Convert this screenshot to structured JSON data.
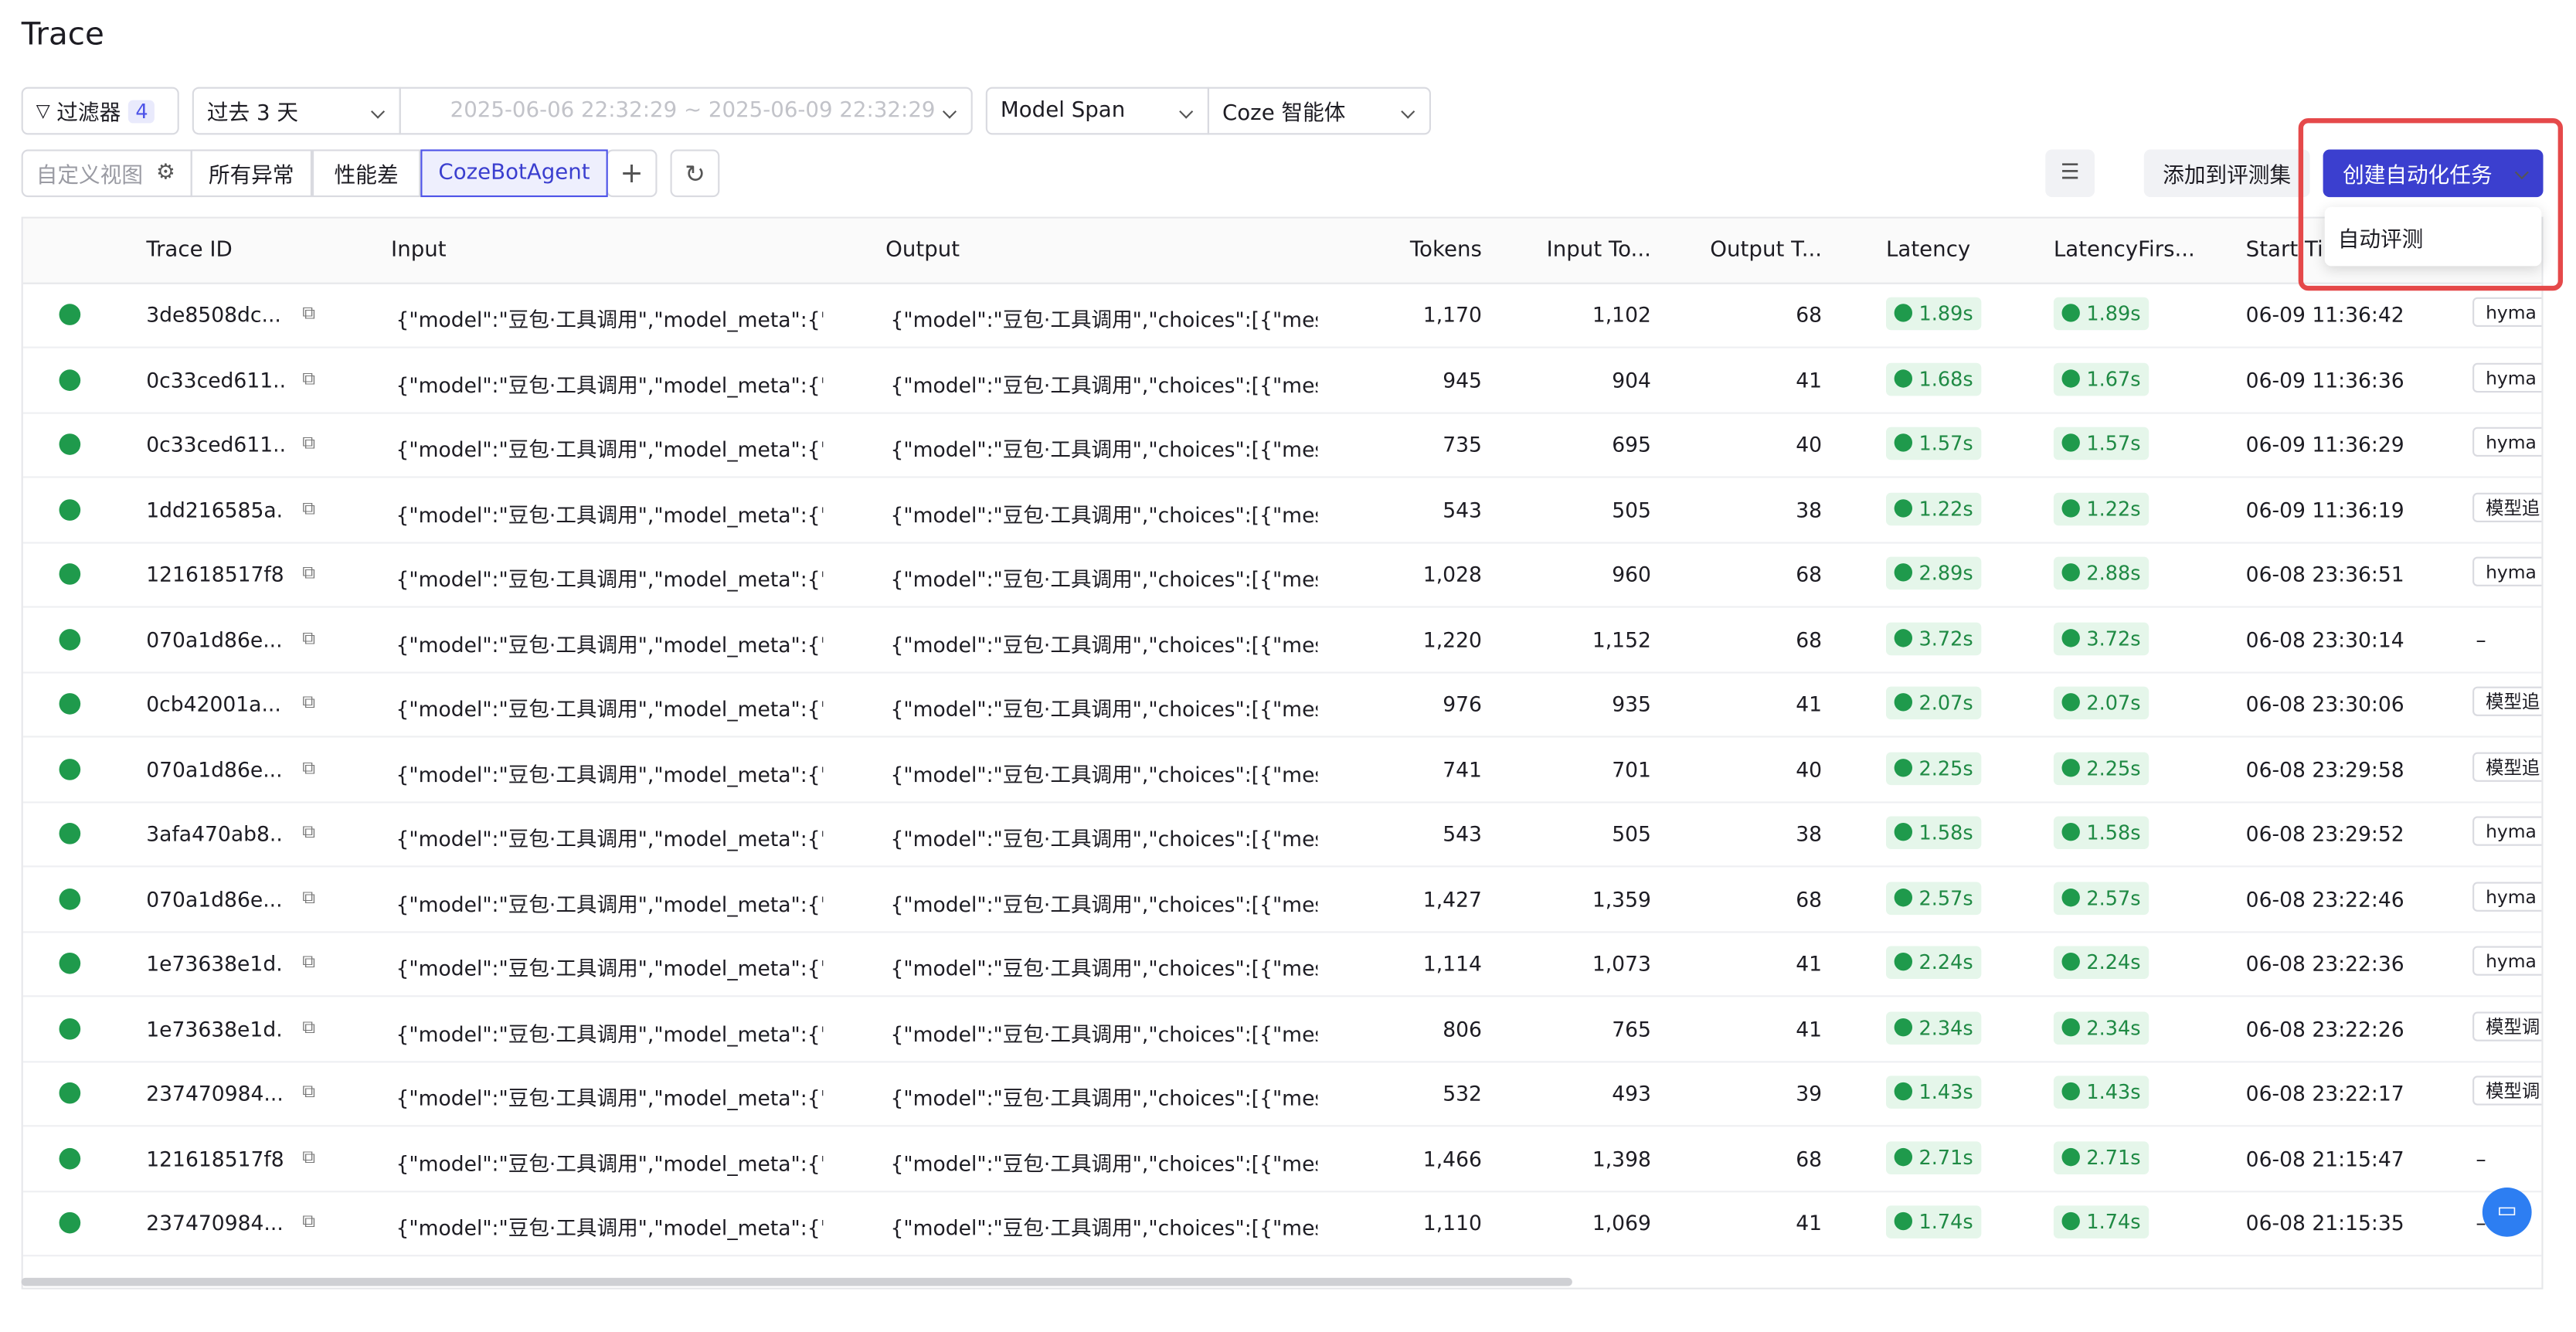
{
  "header": {
    "title": "Trace"
  },
  "toolbar": {
    "filter": "过滤器",
    "filter_count": "4",
    "time_range": "过去 3 天",
    "date_range": "2025-06-06 22:32:29 ~ 2025-06-09 22:32:29",
    "span_type": "Model Span",
    "platform": "Coze 智能体"
  },
  "views": {
    "custom": "自定义视图",
    "tabs": [
      "所有异常",
      "性能差",
      "CozeBotAgent"
    ],
    "add_to_eval": "添加到评测集",
    "create_task": "创建自动化任务",
    "dropdown": [
      "自动评测"
    ]
  },
  "table": {
    "columns": [
      "Trace ID",
      "Input",
      "Output",
      "Tokens",
      "Input To...",
      "Output T...",
      "Latency",
      "LatencyFirs...",
      "Start Tim"
    ],
    "rows": [
      [
        "3de8508dc...",
        "{\"model\":\"豆包·工具调用\",\"model_meta\":{\"t...",
        "{\"model\":\"豆包·工具调用\",\"choices\":[{\"mes...",
        "1,170",
        "1,102",
        "68",
        "1.89s",
        "1.89s",
        "06-09 11:36:42",
        "hyma"
      ],
      [
        "0c33ced611...",
        "{\"model\":\"豆包·工具调用\",\"model_meta\":{\"t...",
        "{\"model\":\"豆包·工具调用\",\"choices\":[{\"mes...",
        "945",
        "904",
        "41",
        "1.68s",
        "1.67s",
        "06-09 11:36:36",
        "hyma"
      ],
      [
        "0c33ced611...",
        "{\"model\":\"豆包·工具调用\",\"model_meta\":{\"t...",
        "{\"model\":\"豆包·工具调用\",\"choices\":[{\"mes...",
        "735",
        "695",
        "40",
        "1.57s",
        "1.57s",
        "06-09 11:36:29",
        "hyma"
      ],
      [
        "1dd216585a...",
        "{\"model\":\"豆包·工具调用\",\"model_meta\":{\"t...",
        "{\"model\":\"豆包·工具调用\",\"choices\":[{\"mes...",
        "543",
        "505",
        "38",
        "1.22s",
        "1.22s",
        "06-09 11:36:19",
        "模型追"
      ],
      [
        "121618517f8...",
        "{\"model\":\"豆包·工具调用\",\"model_meta\":{\"t...",
        "{\"model\":\"豆包·工具调用\",\"choices\":[{\"mes...",
        "1,028",
        "960",
        "68",
        "2.89s",
        "2.88s",
        "06-08 23:36:51",
        "hyma"
      ],
      [
        "070a1d86e...",
        "{\"model\":\"豆包·工具调用\",\"model_meta\":{\"t...",
        "{\"model\":\"豆包·工具调用\",\"choices\":[{\"mes...",
        "1,220",
        "1,152",
        "68",
        "3.72s",
        "3.72s",
        "06-08 23:30:14",
        "–"
      ],
      [
        "0cb42001a...",
        "{\"model\":\"豆包·工具调用\",\"model_meta\":{\"t...",
        "{\"model\":\"豆包·工具调用\",\"choices\":[{\"mes...",
        "976",
        "935",
        "41",
        "2.07s",
        "2.07s",
        "06-08 23:30:06",
        "模型追"
      ],
      [
        "070a1d86e...",
        "{\"model\":\"豆包·工具调用\",\"model_meta\":{\"t...",
        "{\"model\":\"豆包·工具调用\",\"choices\":[{\"mes...",
        "741",
        "701",
        "40",
        "2.25s",
        "2.25s",
        "06-08 23:29:58",
        "模型追"
      ],
      [
        "3afa470ab8...",
        "{\"model\":\"豆包·工具调用\",\"model_meta\":{\"t...",
        "{\"model\":\"豆包·工具调用\",\"choices\":[{\"mes...",
        "543",
        "505",
        "38",
        "1.58s",
        "1.58s",
        "06-08 23:29:52",
        "hyma"
      ],
      [
        "070a1d86e...",
        "{\"model\":\"豆包·工具调用\",\"model_meta\":{\"t...",
        "{\"model\":\"豆包·工具调用\",\"choices\":[{\"mes...",
        "1,427",
        "1,359",
        "68",
        "2.57s",
        "2.57s",
        "06-08 23:22:46",
        "hyma"
      ],
      [
        "1e73638e1d...",
        "{\"model\":\"豆包·工具调用\",\"model_meta\":{\"t...",
        "{\"model\":\"豆包·工具调用\",\"choices\":[{\"mes...",
        "1,114",
        "1,073",
        "41",
        "2.24s",
        "2.24s",
        "06-08 23:22:36",
        "hyma"
      ],
      [
        "1e73638e1d...",
        "{\"model\":\"豆包·工具调用\",\"model_meta\":{\"t...",
        "{\"model\":\"豆包·工具调用\",\"choices\":[{\"mes...",
        "806",
        "765",
        "41",
        "2.34s",
        "2.34s",
        "06-08 23:22:26",
        "模型调"
      ],
      [
        "237470984...",
        "{\"model\":\"豆包·工具调用\",\"model_meta\":{\"t...",
        "{\"model\":\"豆包·工具调用\",\"choices\":[{\"mes...",
        "532",
        "493",
        "39",
        "1.43s",
        "1.43s",
        "06-08 23:22:17",
        "模型调"
      ],
      [
        "121618517f8...",
        "{\"model\":\"豆包·工具调用\",\"model_meta\":{\"t...",
        "{\"model\":\"豆包·工具调用\",\"choices\":[{\"mes...",
        "1,466",
        "1,398",
        "68",
        "2.71s",
        "2.71s",
        "06-08 21:15:47",
        "–"
      ],
      [
        "237470984...",
        "{\"model\":\"豆包·工具调用\",\"model_meta\":{\"t...",
        "{\"model\":\"豆包·工具调用\",\"choices\":[{\"mes...",
        "1,110",
        "1,069",
        "41",
        "1.74s",
        "1.74s",
        "06-08 21:15:35",
        "–"
      ]
    ]
  }
}
